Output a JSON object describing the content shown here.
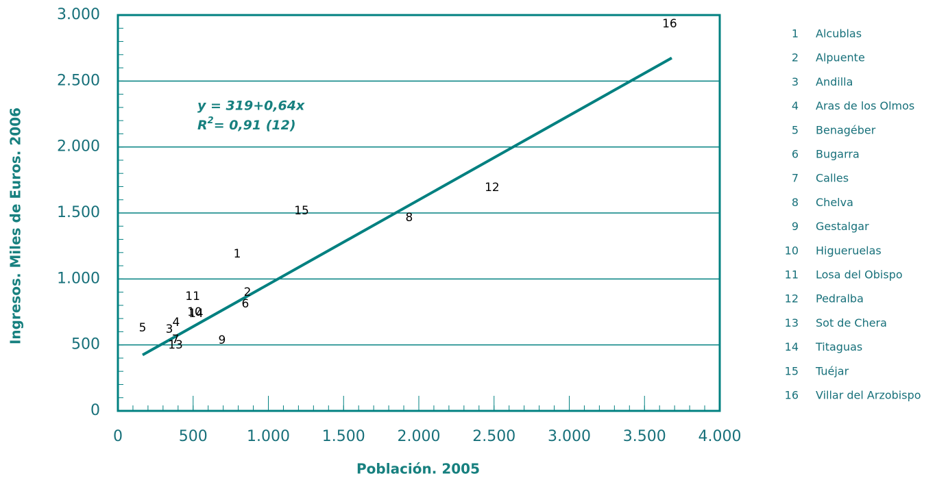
{
  "chart_data": {
    "type": "scatter",
    "x_label": "Población. 2005",
    "y_label": "Ingresos. Miles de Euros. 2006",
    "xlim": [
      0,
      4000
    ],
    "ylim": [
      0,
      3000
    ],
    "xticks": [
      0,
      {
        "value": 500,
        "label": "500"
      },
      {
        "value": 1000,
        "label": "1.000"
      },
      {
        "value": 1500,
        "label": "1.500"
      },
      {
        "value": 2000,
        "label": "2.000"
      },
      {
        "value": 2500,
        "label": "2.500"
      },
      {
        "value": 3000,
        "label": "3.000"
      },
      {
        "value": 3500,
        "label": "3.500"
      },
      {
        "value": 4000,
        "label": "4.000"
      }
    ],
    "yticks": [
      0,
      500,
      {
        "value": 1000,
        "label": "1.000"
      },
      {
        "value": 1500,
        "label": "1.500"
      },
      {
        "value": 2000,
        "label": "2.000"
      },
      {
        "value": 2500,
        "label": "2.500"
      },
      {
        "value": 3000,
        "label": "3.000"
      }
    ],
    "grid": true,
    "color": "#008080",
    "ids": [
      "1",
      "2",
      "3",
      "4",
      "5",
      "6",
      "7",
      "8",
      "9",
      "10",
      "11",
      "12",
      "13",
      "14",
      "15",
      "16"
    ],
    "names": [
      "Alcublas",
      "Alpuente",
      "Andilla",
      "Aras de los Olmos",
      "Benagéber",
      "Bugarra",
      "Calles",
      "Chelva",
      "Gestalgar",
      "Higueruelas",
      "Losa del Obispo",
      "Pedralba",
      "Sot de Chera",
      "Titaguas",
      "Tuéjar",
      "Villar del Arzobispo"
    ],
    "x": [
      793,
      861,
      342,
      387,
      164,
      847,
      383,
      1936,
      692,
      510,
      497,
      2487,
      383,
      519,
      1221,
      3667
    ],
    "values": [
      1188,
      898,
      618,
      669,
      628,
      810,
      540,
      1463,
      534,
      747,
      867,
      1692,
      498,
      737,
      1515,
      2932
    ],
    "trend": {
      "x": [
        164,
        3681
      ],
      "values": [
        424,
        2675
      ]
    },
    "equation": "y = 319+0,64x",
    "r2_symbol": "R",
    "r2_power": "2",
    "r2_text": "= 0,91  (12)"
  }
}
